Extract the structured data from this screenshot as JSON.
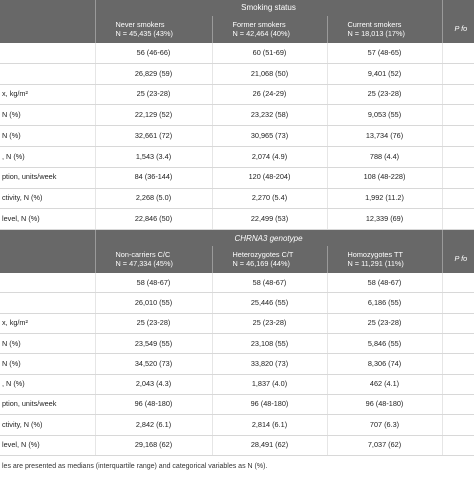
{
  "section1": {
    "title": "Smoking status",
    "columns": [
      {
        "name": "Never smokers",
        "n": "N = 45,435 (43%)"
      },
      {
        "name": "Former smokers",
        "n": "N = 42,464 (40%)"
      },
      {
        "name": "Current smokers",
        "n": "N = 18,013 (17%)"
      }
    ],
    "p_header": "P fo",
    "rows": [
      {
        "label": "",
        "values": [
          "56 (46-66)",
          "60 (51-69)",
          "57 (48-65)"
        ]
      },
      {
        "label": "",
        "values": [
          "26,829 (59)",
          "21,068 (50)",
          "9,401 (52)"
        ]
      },
      {
        "label": "x, kg/m²",
        "values": [
          "25 (23-28)",
          "26 (24-29)",
          "25 (23-28)"
        ]
      },
      {
        "label": "N (%)",
        "values": [
          "22,129 (52)",
          "23,232 (58)",
          "9,053 (55)"
        ]
      },
      {
        "label": "N (%)",
        "values": [
          "32,661 (72)",
          "30,965 (73)",
          "13,734 (76)"
        ]
      },
      {
        "label": ", N (%)",
        "values": [
          "1,543 (3.4)",
          "2,074 (4.9)",
          "788 (4.4)"
        ]
      },
      {
        "label": "ption, units/week",
        "values": [
          "84 (36-144)",
          "120 (48-204)",
          "108 (48-228)"
        ]
      },
      {
        "label": "ctivity, N (%)",
        "values": [
          "2,268 (5.0)",
          "2,270 (5.4)",
          "1,992 (11.2)"
        ]
      },
      {
        "label": "level, N (%)",
        "values": [
          "22,846 (50)",
          "22,499 (53)",
          "12,339 (69)"
        ]
      }
    ]
  },
  "section2": {
    "title": "CHRNA3 genotype",
    "columns": [
      {
        "name": "Non-carriers C/C",
        "n": "N = 47,334 (45%)"
      },
      {
        "name": "Heterozygotes C/T",
        "n": "N = 46,169 (44%)"
      },
      {
        "name": "Homozygotes TT",
        "n": "N = 11,291 (11%)"
      }
    ],
    "p_header": "P fo",
    "rows": [
      {
        "label": "",
        "values": [
          "58 (48-67)",
          "58 (48-67)",
          "58 (48-67)"
        ]
      },
      {
        "label": "",
        "values": [
          "26,010 (55)",
          "25,446 (55)",
          "6,186 (55)"
        ]
      },
      {
        "label": "x, kg/m²",
        "values": [
          "25 (23-28)",
          "25 (23-28)",
          "25 (23-28)"
        ]
      },
      {
        "label": "N (%)",
        "values": [
          "23,549 (55)",
          "23,108 (55)",
          "5,846 (55)"
        ]
      },
      {
        "label": "N (%)",
        "values": [
          "34,520 (73)",
          "33,820 (73)",
          "8,306 (74)"
        ]
      },
      {
        "label": ", N (%)",
        "values": [
          "2,043 (4.3)",
          "1,837 (4.0)",
          "462 (4.1)"
        ]
      },
      {
        "label": "ption, units/week",
        "values": [
          "96 (48-180)",
          "96 (48-180)",
          "96 (48-180)"
        ]
      },
      {
        "label": "ctivity, N (%)",
        "values": [
          "2,842 (6.1)",
          "2,814 (6.1)",
          "707 (6.3)"
        ]
      },
      {
        "label": "level, N (%)",
        "values": [
          "29,168 (62)",
          "28,491 (62)",
          "7,037 (62)"
        ]
      }
    ]
  },
  "footnote": "les are presented as medians (interquartile range) and categorical variables as N (%)."
}
